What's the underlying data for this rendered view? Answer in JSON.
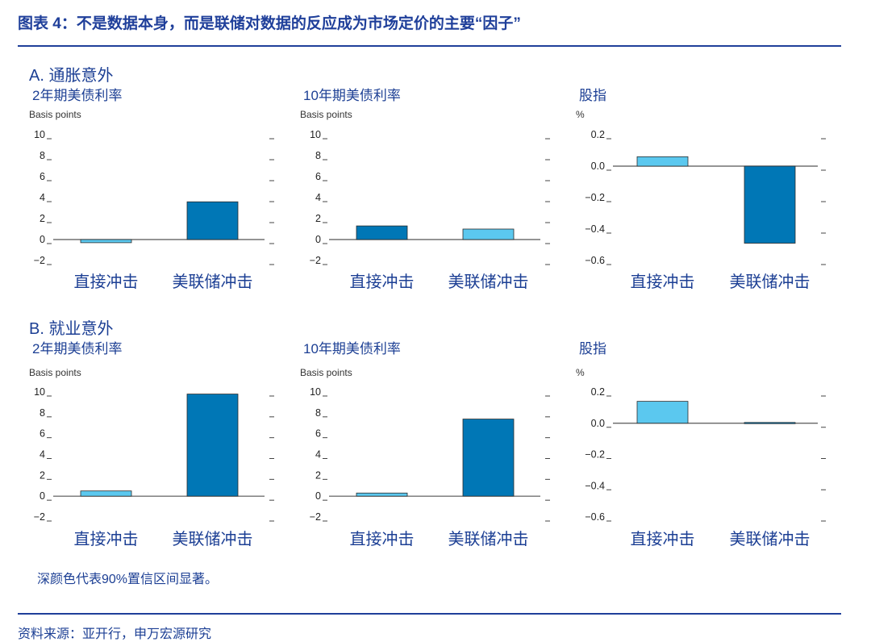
{
  "figure_title": "图表 4：不是数据本身，而是联储对数据的反应成为市场定价的主要“因子”",
  "sections": [
    {
      "label": "A. 通胀意外"
    },
    {
      "label": "B. 就业意外"
    }
  ],
  "footnote": "深颜色代表90%置信区间显著。",
  "source": "资料来源：亚开行，申万宏源研究",
  "colors": {
    "significant": "#0077b6",
    "not_significant": "#5bc8ef",
    "text": "#1c3f94"
  },
  "chart_data": [
    {
      "type": "bar",
      "section": "A",
      "title": "2年期美债利率",
      "unit_label": "Basis points",
      "categories": [
        "直接冲击",
        "美联储冲击"
      ],
      "values": [
        -0.3,
        3.6
      ],
      "significant": [
        false,
        true
      ],
      "ylim": [
        -2,
        10
      ],
      "yticks": [
        "10",
        "8",
        "6",
        "4",
        "2",
        "0",
        "−2"
      ],
      "grid": false
    },
    {
      "type": "bar",
      "section": "A",
      "title": "10年期美债利率",
      "unit_label": "Basis points",
      "categories": [
        "直接冲击",
        "美联储冲击"
      ],
      "values": [
        1.3,
        1.0
      ],
      "significant": [
        true,
        false
      ],
      "ylim": [
        -2,
        10
      ],
      "yticks": [
        "10",
        "8",
        "6",
        "4",
        "2",
        "0",
        "−2"
      ],
      "grid": false
    },
    {
      "type": "bar",
      "section": "A",
      "title": "股指",
      "unit_label": "%",
      "categories": [
        "直接冲击",
        "美联储冲击"
      ],
      "values": [
        0.06,
        -0.49
      ],
      "significant": [
        false,
        true
      ],
      "ylim": [
        -0.6,
        0.2
      ],
      "yticks": [
        "0.2",
        "0.0",
        "−0.2",
        "−0.4",
        "−0.6"
      ],
      "grid": false
    },
    {
      "type": "bar",
      "section": "B",
      "title": "2年期美债利率",
      "unit_label": "Basis points",
      "categories": [
        "直接冲击",
        "美联储冲击"
      ],
      "values": [
        0.5,
        9.8
      ],
      "significant": [
        false,
        true
      ],
      "ylim": [
        -2,
        10
      ],
      "yticks": [
        "10",
        "8",
        "6",
        "4",
        "2",
        "0",
        "−2"
      ],
      "grid": false
    },
    {
      "type": "bar",
      "section": "B",
      "title": "10年期美债利率",
      "unit_label": "Basis points",
      "categories": [
        "直接冲击",
        "美联储冲击"
      ],
      "values": [
        0.3,
        7.4
      ],
      "significant": [
        false,
        true
      ],
      "ylim": [
        -2,
        10
      ],
      "yticks": [
        "10",
        "8",
        "6",
        "4",
        "2",
        "0",
        "−2"
      ],
      "grid": false
    },
    {
      "type": "bar",
      "section": "B",
      "title": "股指",
      "unit_label": "%",
      "categories": [
        "直接冲击",
        "美联储冲击"
      ],
      "values": [
        0.14,
        0.005
      ],
      "significant": [
        false,
        true
      ],
      "ylim": [
        -0.6,
        0.2
      ],
      "yticks": [
        "0.2",
        "0.0",
        "−0.2",
        "−0.4",
        "−0.6"
      ],
      "grid": false
    }
  ]
}
